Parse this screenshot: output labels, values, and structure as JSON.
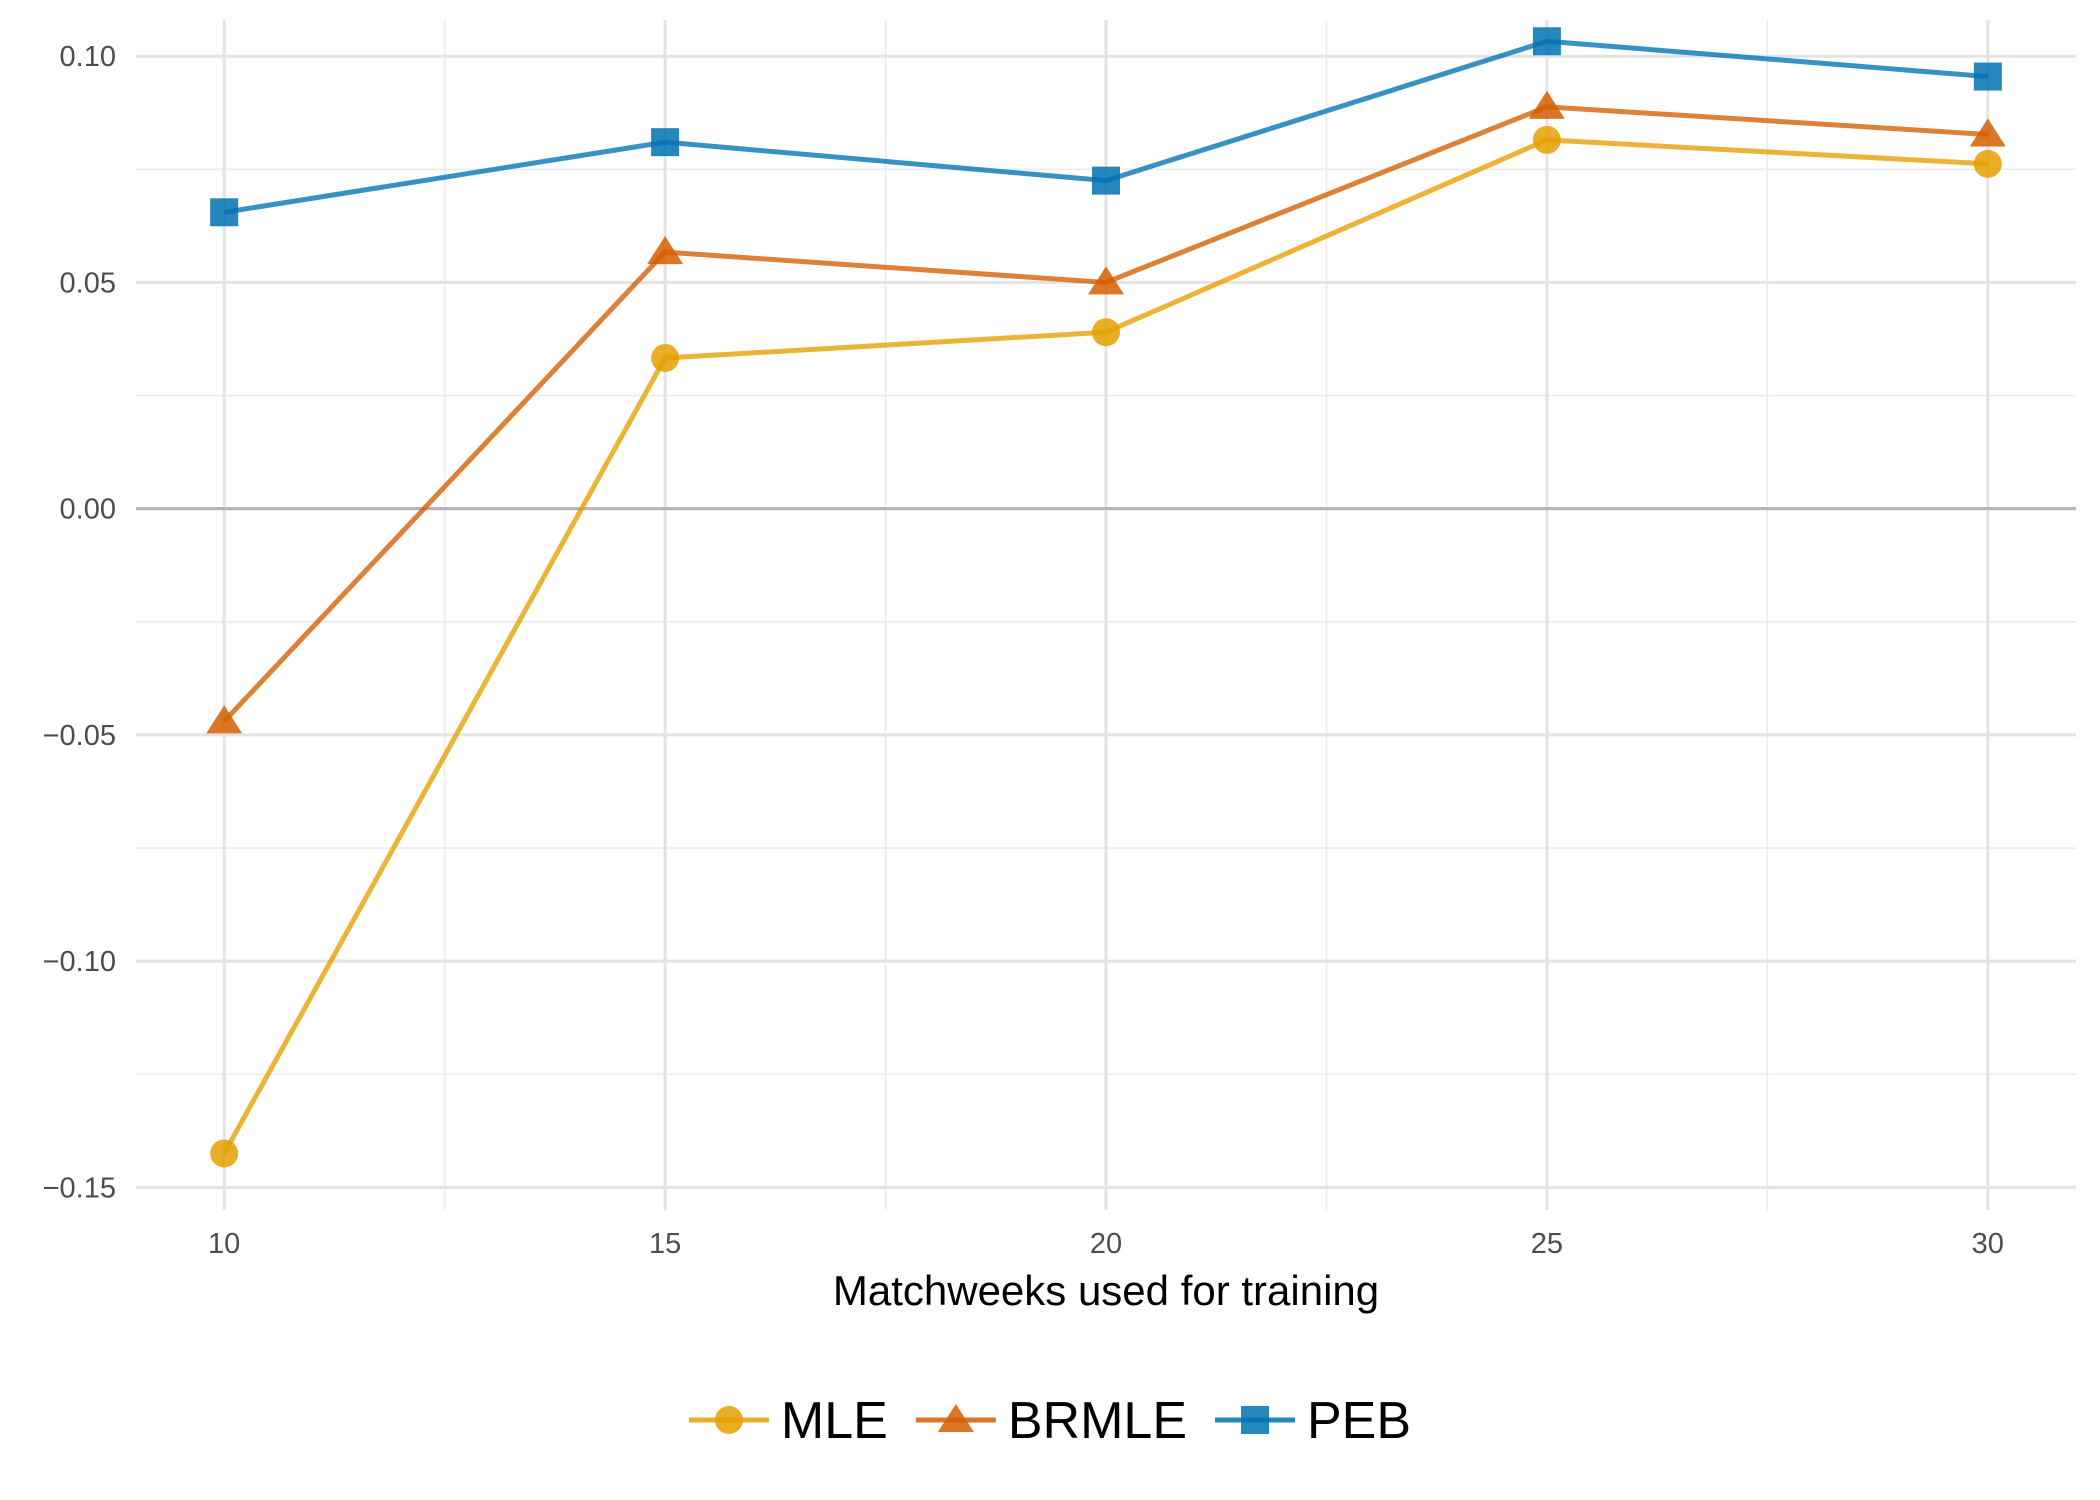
{
  "chart_data": {
    "type": "line",
    "xlabel": "Matchweeks used for training",
    "ylabel": "",
    "x": [
      10,
      15,
      20,
      25,
      30
    ],
    "xlim": [
      9,
      31
    ],
    "ylim": [
      -0.155,
      0.108
    ],
    "x_ticks": [
      10,
      15,
      20,
      25,
      30
    ],
    "x_tick_labels": [
      "10",
      "15",
      "20",
      "25",
      "30"
    ],
    "y_ticks": [
      -0.15,
      -0.1,
      -0.05,
      0.0,
      0.05,
      0.1
    ],
    "y_tick_labels": [
      "−0.15",
      "−0.10",
      "−0.05",
      "0.00",
      "0.05",
      "0.10"
    ],
    "zero_line": true,
    "grid": true,
    "legend_position": "bottom",
    "series": [
      {
        "name": "MLE",
        "marker": "circle",
        "color": "#E69F00",
        "values": [
          -0.1425,
          0.0333,
          0.039,
          0.0815,
          0.0762
        ]
      },
      {
        "name": "BRMLE",
        "marker": "triangle",
        "color": "#D55E00",
        "values": [
          -0.047,
          0.0567,
          0.05,
          0.0888,
          0.0827
        ]
      },
      {
        "name": "PEB",
        "marker": "square",
        "color": "#0072B2",
        "values": [
          0.0655,
          0.081,
          0.0725,
          0.1033,
          0.0955
        ]
      }
    ]
  }
}
